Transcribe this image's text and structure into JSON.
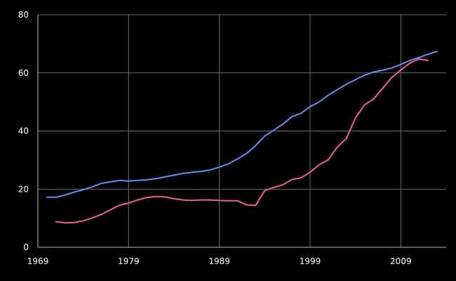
{
  "chart_data": {
    "type": "line",
    "title": "",
    "xlabel": "",
    "ylabel": "",
    "xlim": [
      1969,
      2014
    ],
    "ylim": [
      0,
      80
    ],
    "grid": true,
    "legend": "none",
    "background": "#000000",
    "x_ticks": [
      1969,
      1979,
      1989,
      1999,
      2009
    ],
    "y_ticks": [
      0,
      20,
      40,
      60,
      80
    ],
    "series": [
      {
        "color": "#6b8ee8",
        "x": [
          1970,
          1971,
          1972,
          1973,
          1974,
          1975,
          1976,
          1977,
          1978,
          1979,
          1980,
          1981,
          1982,
          1983,
          1984,
          1985,
          1986,
          1987,
          1988,
          1989,
          1990,
          1991,
          1992,
          1993,
          1994,
          1995,
          1996,
          1997,
          1998,
          1999,
          2000,
          2001,
          2002,
          2003,
          2004,
          2005,
          2006,
          2007,
          2008,
          2009,
          2010,
          2011,
          2012,
          2013
        ],
        "values": [
          17.2,
          17.2,
          18,
          19,
          19.8,
          20.8,
          22,
          22.5,
          23,
          22.8,
          23,
          23.2,
          23.6,
          24.2,
          24.8,
          25.4,
          25.8,
          26.1,
          26.6,
          27.6,
          28.7,
          30.4,
          32.3,
          35,
          38.3,
          40.3,
          42.4,
          44.9,
          46.1,
          48.4,
          50,
          52.3,
          54.2,
          56.1,
          57.7,
          59.2,
          60.3,
          60.9,
          61.7,
          62.9,
          64.3,
          65.3,
          66.4,
          67.4
        ]
      },
      {
        "color": "#e8649a",
        "x": [
          1971,
          1972,
          1973,
          1974,
          1975,
          1976,
          1977,
          1978,
          1979,
          1980,
          1981,
          1982,
          1983,
          1984,
          1985,
          1986,
          1987,
          1988,
          1989,
          1990,
          1991,
          1992,
          1993,
          1994,
          1995,
          1996,
          1997,
          1998,
          1999,
          2000,
          2001,
          2002,
          2003,
          2004,
          2005,
          2006,
          2007,
          2008,
          2009,
          2010,
          2011,
          2012
        ],
        "values": [
          8.8,
          8.4,
          8.5,
          9.1,
          10.1,
          11.3,
          12.9,
          14.5,
          15.2,
          16.3,
          17.1,
          17.5,
          17.3,
          16.7,
          16.3,
          16.1,
          16.3,
          16.3,
          16.1,
          16,
          16,
          14.6,
          14.4,
          19.5,
          20.6,
          21.5,
          23.3,
          23.9,
          25.8,
          28.4,
          30.1,
          34.5,
          37.4,
          44.5,
          49,
          51,
          54.7,
          58.4,
          61,
          63.4,
          64.8,
          64.3
        ]
      }
    ]
  }
}
